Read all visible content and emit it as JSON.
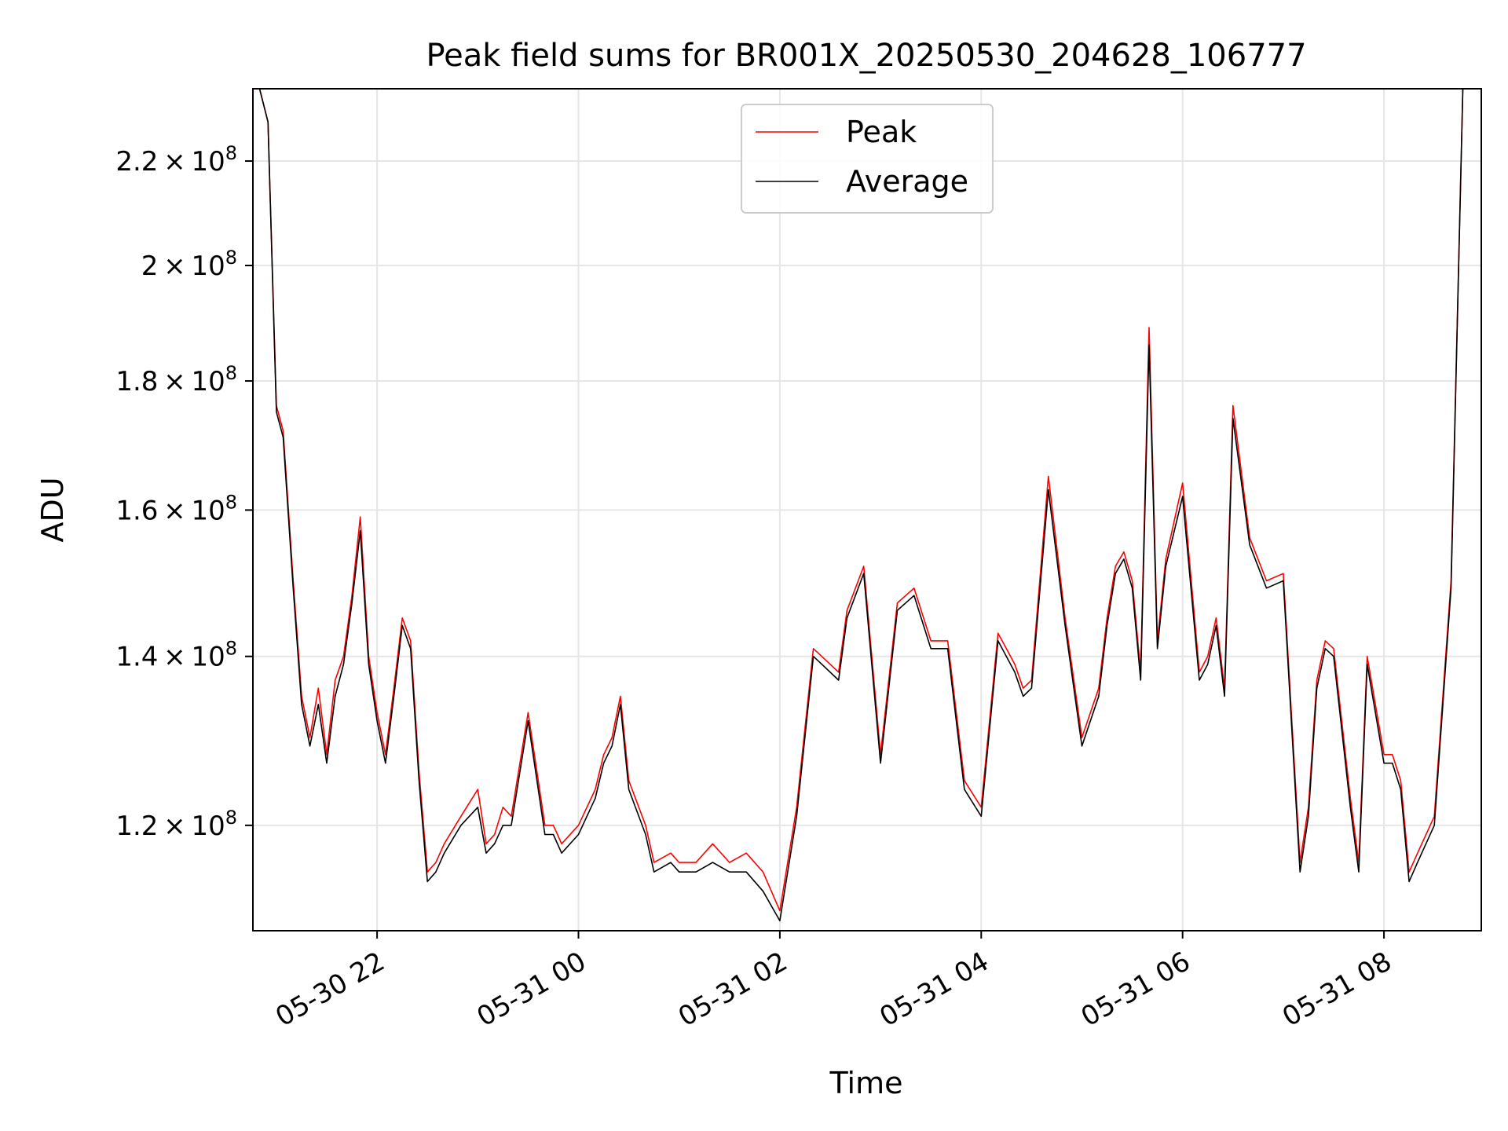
{
  "chart_data": {
    "type": "line",
    "title": "Peak field sums for BR001X_20250530_204628_106777",
    "xlabel": "Time",
    "ylabel": "ADU",
    "y_scale": "log",
    "grid": true,
    "legend_position": "top-center",
    "xlim": [
      "2025-05-30 20:46",
      "2025-05-31 08:58"
    ],
    "ylim": [
      109000000,
      235000000
    ],
    "x_ticks": [
      {
        "value": "2025-05-30 22:00",
        "label": "05-30 22"
      },
      {
        "value": "2025-05-31 00:00",
        "label": "05-31 00"
      },
      {
        "value": "2025-05-31 02:00",
        "label": "05-31 02"
      },
      {
        "value": "2025-05-31 04:00",
        "label": "05-31 04"
      },
      {
        "value": "2025-05-31 06:00",
        "label": "05-31 06"
      },
      {
        "value": "2025-05-31 08:00",
        "label": "05-31 08"
      }
    ],
    "y_ticks": [
      {
        "value": 120000000,
        "mantissa": "1.2",
        "exponent": "8"
      },
      {
        "value": 140000000,
        "mantissa": "1.4",
        "exponent": "8"
      },
      {
        "value": 160000000,
        "mantissa": "1.6",
        "exponent": "8"
      },
      {
        "value": 180000000,
        "mantissa": "1.8",
        "exponent": "8"
      },
      {
        "value": 200000000,
        "mantissa": "2",
        "exponent": "8"
      },
      {
        "value": 220000000,
        "mantissa": "2.2",
        "exponent": "8"
      }
    ],
    "series": [
      {
        "name": "Peak",
        "color": "#ff0000",
        "x": [
          "2025-05-30 20:50",
          "2025-05-30 20:55",
          "2025-05-30 21:00",
          "2025-05-30 21:04",
          "2025-05-30 21:10",
          "2025-05-30 21:15",
          "2025-05-30 21:20",
          "2025-05-30 21:25",
          "2025-05-30 21:30",
          "2025-05-30 21:35",
          "2025-05-30 21:40",
          "2025-05-30 21:45",
          "2025-05-30 21:50",
          "2025-05-30 21:55",
          "2025-05-30 22:00",
          "2025-05-30 22:05",
          "2025-05-30 22:10",
          "2025-05-30 22:15",
          "2025-05-30 22:20",
          "2025-05-30 22:25",
          "2025-05-30 22:30",
          "2025-05-30 22:35",
          "2025-05-30 22:40",
          "2025-05-30 22:50",
          "2025-05-30 23:00",
          "2025-05-30 23:05",
          "2025-05-30 23:10",
          "2025-05-30 23:15",
          "2025-05-30 23:20",
          "2025-05-30 23:30",
          "2025-05-30 23:40",
          "2025-05-30 23:45",
          "2025-05-30 23:50",
          "2025-05-31 00:00",
          "2025-05-31 00:10",
          "2025-05-31 00:15",
          "2025-05-31 00:20",
          "2025-05-31 00:25",
          "2025-05-31 00:30",
          "2025-05-31 00:40",
          "2025-05-31 00:45",
          "2025-05-31 00:55",
          "2025-05-31 01:00",
          "2025-05-31 01:10",
          "2025-05-31 01:20",
          "2025-05-31 01:30",
          "2025-05-31 01:40",
          "2025-05-31 01:50",
          "2025-05-31 02:00",
          "2025-05-31 02:10",
          "2025-05-31 02:20",
          "2025-05-31 02:25",
          "2025-05-31 02:35",
          "2025-05-31 02:40",
          "2025-05-31 02:50",
          "2025-05-31 03:00",
          "2025-05-31 03:10",
          "2025-05-31 03:20",
          "2025-05-31 03:30",
          "2025-05-31 03:40",
          "2025-05-31 03:50",
          "2025-05-31 04:00",
          "2025-05-31 04:10",
          "2025-05-31 04:15",
          "2025-05-31 04:20",
          "2025-05-31 04:25",
          "2025-05-31 04:30",
          "2025-05-31 04:40",
          "2025-05-31 04:50",
          "2025-05-31 05:00",
          "2025-05-31 05:10",
          "2025-05-31 05:15",
          "2025-05-31 05:20",
          "2025-05-31 05:25",
          "2025-05-31 05:30",
          "2025-05-31 05:35",
          "2025-05-31 05:40",
          "2025-05-31 05:45",
          "2025-05-31 05:50",
          "2025-05-31 06:00",
          "2025-05-31 06:10",
          "2025-05-31 06:15",
          "2025-05-31 06:20",
          "2025-05-31 06:25",
          "2025-05-31 06:30",
          "2025-05-31 06:40",
          "2025-05-31 06:50",
          "2025-05-31 07:00",
          "2025-05-31 07:10",
          "2025-05-31 07:15",
          "2025-05-31 07:20",
          "2025-05-31 07:25",
          "2025-05-31 07:30",
          "2025-05-31 07:40",
          "2025-05-31 07:45",
          "2025-05-31 07:50",
          "2025-05-31 08:00",
          "2025-05-31 08:05",
          "2025-05-31 08:10",
          "2025-05-31 08:15",
          "2025-05-31 08:20",
          "2025-05-31 08:30",
          "2025-05-31 08:40",
          "2025-05-31 08:47"
        ],
        "values": [
          235000000,
          228000000,
          176000000,
          172000000,
          150000000,
          135000000,
          130000000,
          136000000,
          128000000,
          137000000,
          140000000,
          148000000,
          159000000,
          140000000,
          133000000,
          128000000,
          136000000,
          145000000,
          142000000,
          126000000,
          115000000,
          116000000,
          118000000,
          121000000,
          124000000,
          118000000,
          119000000,
          122000000,
          121000000,
          133000000,
          120000000,
          120000000,
          118000000,
          120000000,
          124000000,
          128000000,
          130000000,
          135000000,
          125000000,
          120000000,
          116000000,
          117000000,
          116000000,
          116000000,
          118000000,
          116000000,
          117000000,
          115000000,
          111000000,
          122000000,
          141000000,
          140000000,
          138000000,
          146000000,
          152000000,
          128000000,
          147000000,
          149000000,
          142000000,
          142000000,
          125000000,
          122000000,
          143000000,
          141000000,
          139000000,
          136000000,
          137000000,
          165000000,
          145000000,
          130000000,
          136000000,
          145000000,
          152000000,
          154000000,
          150000000,
          138000000,
          189000000,
          142000000,
          153000000,
          164000000,
          138000000,
          140000000,
          145000000,
          136000000,
          176000000,
          156000000,
          150000000,
          151000000,
          116000000,
          122000000,
          137000000,
          142000000,
          141000000,
          123000000,
          116000000,
          140000000,
          128000000,
          128000000,
          125000000,
          115000000,
          117000000,
          121000000,
          150000000,
          235000000
        ]
      },
      {
        "name": "Average",
        "color": "#000000",
        "x": [
          "2025-05-30 20:50",
          "2025-05-30 20:55",
          "2025-05-30 21:00",
          "2025-05-30 21:04",
          "2025-05-30 21:10",
          "2025-05-30 21:15",
          "2025-05-30 21:20",
          "2025-05-30 21:25",
          "2025-05-30 21:30",
          "2025-05-30 21:35",
          "2025-05-30 21:40",
          "2025-05-30 21:45",
          "2025-05-30 21:50",
          "2025-05-30 21:55",
          "2025-05-30 22:00",
          "2025-05-30 22:05",
          "2025-05-30 22:10",
          "2025-05-30 22:15",
          "2025-05-30 22:20",
          "2025-05-30 22:25",
          "2025-05-30 22:30",
          "2025-05-30 22:35",
          "2025-05-30 22:40",
          "2025-05-30 22:50",
          "2025-05-30 23:00",
          "2025-05-30 23:05",
          "2025-05-30 23:10",
          "2025-05-30 23:15",
          "2025-05-30 23:20",
          "2025-05-30 23:30",
          "2025-05-30 23:40",
          "2025-05-30 23:45",
          "2025-05-30 23:50",
          "2025-05-31 00:00",
          "2025-05-31 00:10",
          "2025-05-31 00:15",
          "2025-05-31 00:20",
          "2025-05-31 00:25",
          "2025-05-31 00:30",
          "2025-05-31 00:40",
          "2025-05-31 00:45",
          "2025-05-31 00:55",
          "2025-05-31 01:00",
          "2025-05-31 01:10",
          "2025-05-31 01:20",
          "2025-05-31 01:30",
          "2025-05-31 01:40",
          "2025-05-31 01:50",
          "2025-05-31 02:00",
          "2025-05-31 02:10",
          "2025-05-31 02:20",
          "2025-05-31 02:25",
          "2025-05-31 02:35",
          "2025-05-31 02:40",
          "2025-05-31 02:50",
          "2025-05-31 03:00",
          "2025-05-31 03:10",
          "2025-05-31 03:20",
          "2025-05-31 03:30",
          "2025-05-31 03:40",
          "2025-05-31 03:50",
          "2025-05-31 04:00",
          "2025-05-31 04:10",
          "2025-05-31 04:15",
          "2025-05-31 04:20",
          "2025-05-31 04:25",
          "2025-05-31 04:30",
          "2025-05-31 04:40",
          "2025-05-31 04:50",
          "2025-05-31 05:00",
          "2025-05-31 05:10",
          "2025-05-31 05:15",
          "2025-05-31 05:20",
          "2025-05-31 05:25",
          "2025-05-31 05:30",
          "2025-05-31 05:35",
          "2025-05-31 05:40",
          "2025-05-31 05:45",
          "2025-05-31 05:50",
          "2025-05-31 06:00",
          "2025-05-31 06:10",
          "2025-05-31 06:15",
          "2025-05-31 06:20",
          "2025-05-31 06:25",
          "2025-05-31 06:30",
          "2025-05-31 06:40",
          "2025-05-31 06:50",
          "2025-05-31 07:00",
          "2025-05-31 07:10",
          "2025-05-31 07:15",
          "2025-05-31 07:20",
          "2025-05-31 07:25",
          "2025-05-31 07:30",
          "2025-05-31 07:40",
          "2025-05-31 07:45",
          "2025-05-31 07:50",
          "2025-05-31 08:00",
          "2025-05-31 08:05",
          "2025-05-31 08:10",
          "2025-05-31 08:15",
          "2025-05-31 08:20",
          "2025-05-31 08:30",
          "2025-05-31 08:40",
          "2025-05-31 08:47"
        ],
        "values": [
          235000000,
          228000000,
          175000000,
          171000000,
          149000000,
          134000000,
          129000000,
          134000000,
          127000000,
          135000000,
          139000000,
          147000000,
          157000000,
          139000000,
          132000000,
          127000000,
          135000000,
          144000000,
          141000000,
          125000000,
          114000000,
          115000000,
          117000000,
          120000000,
          122000000,
          117000000,
          118000000,
          120000000,
          120000000,
          132000000,
          119000000,
          119000000,
          117000000,
          119000000,
          123000000,
          127000000,
          129000000,
          134000000,
          124000000,
          119000000,
          115000000,
          116000000,
          115000000,
          115000000,
          116000000,
          115000000,
          115000000,
          113000000,
          110000000,
          121000000,
          140000000,
          139000000,
          137000000,
          145000000,
          151000000,
          127000000,
          146000000,
          148000000,
          141000000,
          141000000,
          124000000,
          121000000,
          142000000,
          140000000,
          138000000,
          135000000,
          136000000,
          163000000,
          144000000,
          129000000,
          135000000,
          144000000,
          151000000,
          153000000,
          149000000,
          137000000,
          186000000,
          141000000,
          152000000,
          162000000,
          137000000,
          139000000,
          144000000,
          135000000,
          174000000,
          155000000,
          149000000,
          150000000,
          115000000,
          121000000,
          136000000,
          141000000,
          140000000,
          122000000,
          115000000,
          139000000,
          127000000,
          127000000,
          124000000,
          114000000,
          116000000,
          120000000,
          149000000,
          235000000
        ]
      }
    ]
  }
}
